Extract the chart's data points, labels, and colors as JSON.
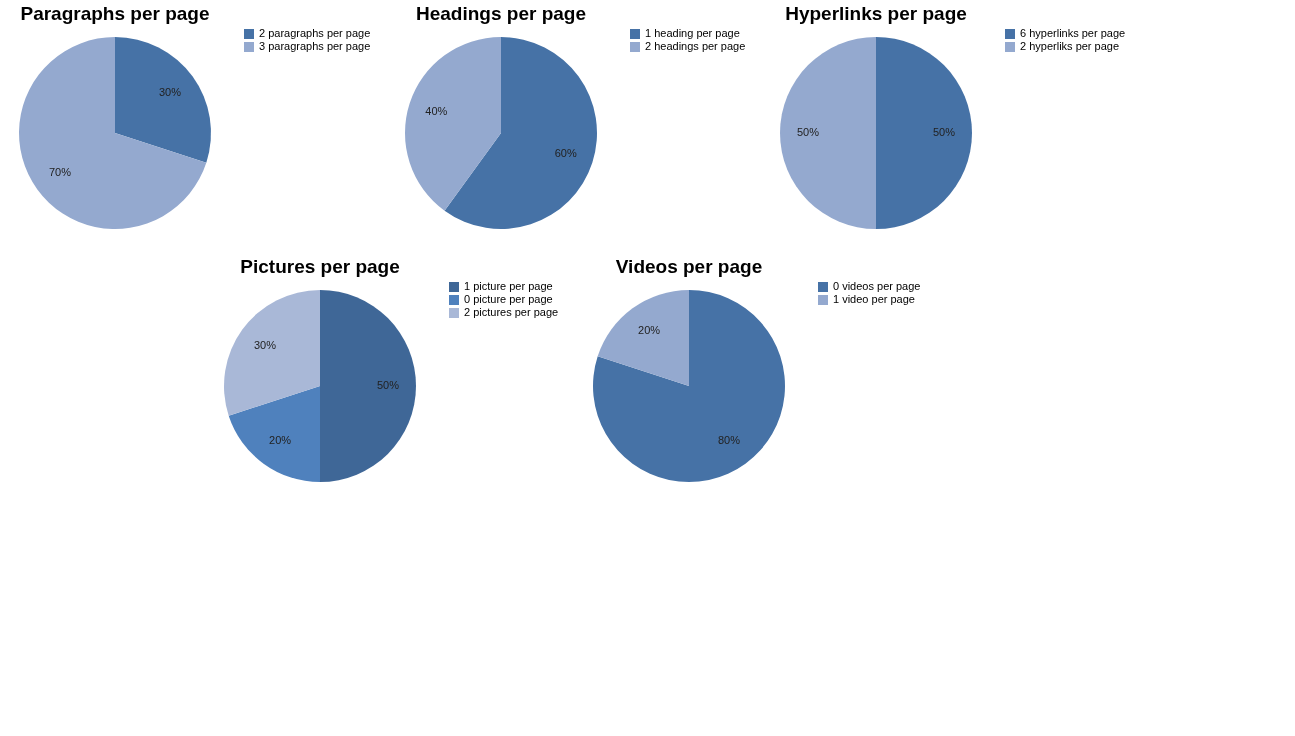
{
  "chart_data": [
    {
      "type": "pie",
      "title": "Headings per page",
      "categories": [
        "1 heading per page",
        "2 headings per page"
      ],
      "values": [
        60,
        40
      ],
      "value_labels": [
        "60%",
        "40%"
      ],
      "colors": [
        "#4672a6",
        "#94a9cf"
      ],
      "legend": "right"
    },
    {
      "type": "pie",
      "title": "Paragraphs per page",
      "categories": [
        "2 paragraphs per page",
        "3 paragraphs per page"
      ],
      "values": [
        30,
        70
      ],
      "value_labels": [
        "30%",
        "70%"
      ],
      "colors": [
        "#4672a6",
        "#94a9cf"
      ],
      "legend": "right"
    },
    {
      "type": "pie",
      "title": "Hyperlinks per page",
      "categories": [
        "6 hyperlinks per page",
        "2 hyperliks per page"
      ],
      "values": [
        50,
        50
      ],
      "value_labels": [
        "50%",
        "50%"
      ],
      "colors": [
        "#4672a6",
        "#94a9cf"
      ],
      "legend": "right"
    },
    {
      "type": "pie",
      "title": "Pictures per  page",
      "categories": [
        "1 picture per page",
        "0 picture per page",
        "2 pictures per page"
      ],
      "values": [
        50,
        20,
        30
      ],
      "value_labels": [
        "50%",
        "20%",
        "30%"
      ],
      "colors": [
        "#3f6797",
        "#4f81bd",
        "#a9b8d7"
      ],
      "legend": "right"
    },
    {
      "type": "pie",
      "title": "Videos per page",
      "categories": [
        "0 videos per page",
        "1 video per page"
      ],
      "values": [
        80,
        20
      ],
      "value_labels": [
        "80%",
        "20%"
      ],
      "colors": [
        "#4672a6",
        "#94a9cf"
      ],
      "legend": "right"
    }
  ]
}
